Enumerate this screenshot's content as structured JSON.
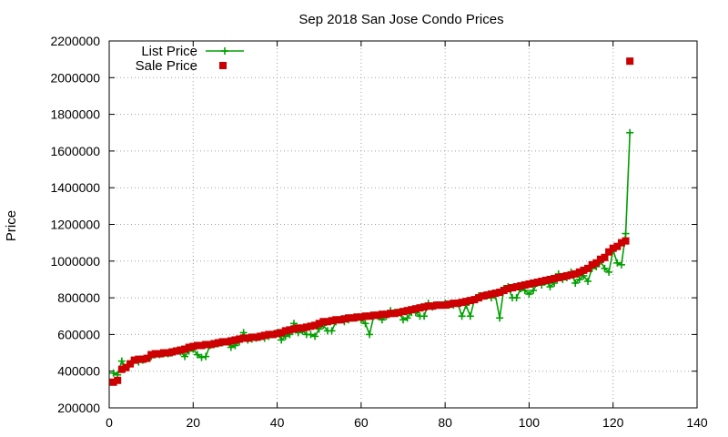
{
  "chart_data": {
    "type": "scatter",
    "title": "Sep 2018 San Jose Condo Prices",
    "xlabel": "",
    "ylabel": "Price",
    "xlim": [
      0,
      140
    ],
    "ylim": [
      200000,
      2200000
    ],
    "xticks": [
      0,
      20,
      40,
      60,
      80,
      100,
      120,
      140
    ],
    "yticks": [
      200000,
      400000,
      600000,
      800000,
      1000000,
      1200000,
      1400000,
      1600000,
      1800000,
      2000000,
      2200000
    ],
    "grid": true,
    "legend_position": "top-left",
    "series": [
      {
        "name": "List Price",
        "style": "linespoints",
        "marker": "plus",
        "color": "#00a000",
        "x": [
          1,
          2,
          3,
          4,
          5,
          6,
          7,
          8,
          9,
          10,
          11,
          12,
          13,
          14,
          15,
          16,
          17,
          18,
          19,
          20,
          21,
          22,
          23,
          24,
          25,
          26,
          27,
          28,
          29,
          30,
          31,
          32,
          33,
          34,
          35,
          36,
          37,
          38,
          39,
          40,
          41,
          42,
          43,
          44,
          45,
          46,
          47,
          48,
          49,
          50,
          51,
          52,
          53,
          54,
          55,
          56,
          57,
          58,
          59,
          60,
          61,
          62,
          63,
          64,
          65,
          66,
          67,
          68,
          69,
          70,
          71,
          72,
          73,
          74,
          75,
          76,
          77,
          78,
          79,
          80,
          81,
          82,
          83,
          84,
          85,
          86,
          87,
          88,
          89,
          90,
          91,
          92,
          93,
          94,
          95,
          96,
          97,
          98,
          99,
          100,
          101,
          102,
          103,
          104,
          105,
          106,
          107,
          108,
          109,
          110,
          111,
          112,
          113,
          114,
          115,
          116,
          117,
          118,
          119,
          120,
          121,
          122,
          123,
          124
        ],
        "y": [
          390000,
          380000,
          455000,
          420000,
          440000,
          460000,
          450000,
          460000,
          470000,
          480000,
          490000,
          490000,
          495000,
          495000,
          500000,
          510000,
          505000,
          480000,
          510000,
          520000,
          490000,
          475000,
          480000,
          540000,
          545000,
          550000,
          555000,
          560000,
          530000,
          540000,
          560000,
          610000,
          570000,
          575000,
          580000,
          585000,
          580000,
          590000,
          600000,
          610000,
          570000,
          590000,
          600000,
          660000,
          610000,
          620000,
          600000,
          600000,
          590000,
          630000,
          650000,
          620000,
          620000,
          670000,
          680000,
          670000,
          680000,
          690000,
          690000,
          680000,
          660000,
          600000,
          700000,
          700000,
          680000,
          700000,
          730000,
          720000,
          720000,
          680000,
          690000,
          720000,
          720000,
          700000,
          700000,
          770000,
          750000,
          760000,
          760000,
          770000,
          760000,
          760000,
          770000,
          700000,
          760000,
          700000,
          790000,
          810000,
          810000,
          810000,
          800000,
          810000,
          690000,
          850000,
          860000,
          800000,
          800000,
          850000,
          840000,
          820000,
          840000,
          880000,
          870000,
          890000,
          860000,
          880000,
          930000,
          900000,
          910000,
          940000,
          880000,
          900000,
          920000,
          890000,
          960000,
          970000,
          1000000,
          960000,
          940000,
          1060000,
          990000,
          980000,
          1150000,
          1700000
        ]
      },
      {
        "name": "Sale Price",
        "style": "points",
        "marker": "square",
        "color": "#cc0000",
        "x": [
          1,
          2,
          3,
          4,
          5,
          6,
          7,
          8,
          9,
          10,
          11,
          12,
          13,
          14,
          15,
          16,
          17,
          18,
          19,
          20,
          21,
          22,
          23,
          24,
          25,
          26,
          27,
          28,
          29,
          30,
          31,
          32,
          33,
          34,
          35,
          36,
          37,
          38,
          39,
          40,
          41,
          42,
          43,
          44,
          45,
          46,
          47,
          48,
          49,
          50,
          51,
          52,
          53,
          54,
          55,
          56,
          57,
          58,
          59,
          60,
          61,
          62,
          63,
          64,
          65,
          66,
          67,
          68,
          69,
          70,
          71,
          72,
          73,
          74,
          75,
          76,
          77,
          78,
          79,
          80,
          81,
          82,
          83,
          84,
          85,
          86,
          87,
          88,
          89,
          90,
          91,
          92,
          93,
          94,
          95,
          96,
          97,
          98,
          99,
          100,
          101,
          102,
          103,
          104,
          105,
          106,
          107,
          108,
          109,
          110,
          111,
          112,
          113,
          114,
          115,
          116,
          117,
          118,
          119,
          120,
          121,
          122,
          123,
          124
        ],
        "y": [
          340000,
          350000,
          410000,
          420000,
          440000,
          460000,
          465000,
          465000,
          470000,
          490000,
          495000,
          495000,
          500000,
          500000,
          505000,
          510000,
          515000,
          520000,
          530000,
          535000,
          540000,
          540000,
          545000,
          545000,
          550000,
          555000,
          560000,
          560000,
          565000,
          570000,
          575000,
          580000,
          580000,
          585000,
          585000,
          590000,
          595000,
          600000,
          600000,
          605000,
          610000,
          620000,
          625000,
          630000,
          635000,
          635000,
          640000,
          645000,
          650000,
          660000,
          670000,
          670000,
          675000,
          680000,
          680000,
          685000,
          690000,
          690000,
          695000,
          695000,
          700000,
          700000,
          705000,
          705000,
          710000,
          710000,
          715000,
          715000,
          720000,
          725000,
          730000,
          735000,
          740000,
          745000,
          750000,
          755000,
          755000,
          760000,
          760000,
          760000,
          765000,
          770000,
          770000,
          775000,
          780000,
          785000,
          790000,
          800000,
          810000,
          815000,
          820000,
          825000,
          830000,
          840000,
          850000,
          855000,
          860000,
          865000,
          870000,
          875000,
          880000,
          885000,
          890000,
          895000,
          900000,
          905000,
          910000,
          915000,
          920000,
          925000,
          930000,
          940000,
          950000,
          960000,
          980000,
          990000,
          1010000,
          1020000,
          1050000,
          1070000,
          1080000,
          1100000,
          1110000,
          2090000
        ]
      }
    ]
  }
}
